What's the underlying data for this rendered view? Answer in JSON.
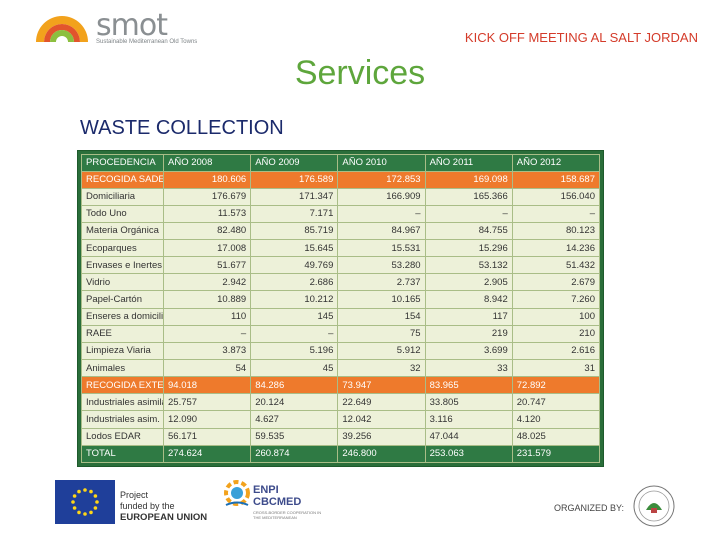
{
  "header": {
    "logo_word": "smot",
    "logo_tagline": "Sustainable Mediterranean Old Towns",
    "kickoff": "KICK OFF MEETING AL SALT JORDAN"
  },
  "title": "Services",
  "subtitle": "WASTE COLLECTION",
  "table": {
    "headers": [
      "PROCEDENCIA",
      "AÑO 2008",
      "AÑO 2009",
      "AÑO 2010",
      "AÑO 2011",
      "AÑO 2012"
    ],
    "rows": [
      {
        "style": "orange",
        "cells": [
          "RECOGIDA SADECO",
          "180.606",
          "176.589",
          "172.853",
          "169.098",
          "158.687"
        ]
      },
      {
        "style": "light",
        "cells": [
          "Domiciliaria",
          "176.679",
          "171.347",
          "166.909",
          "165.366",
          "156.040"
        ]
      },
      {
        "style": "light",
        "cells": [
          "Todo Uno",
          "11.573",
          "7.171",
          "–",
          "–",
          "–"
        ]
      },
      {
        "style": "light",
        "cells": [
          "Materia Orgánica",
          "82.480",
          "85.719",
          "84.967",
          "84.755",
          "80.123"
        ]
      },
      {
        "style": "light",
        "cells": [
          "Ecoparques",
          "17.008",
          "15.645",
          "15.531",
          "15.296",
          "14.236"
        ]
      },
      {
        "style": "light",
        "cells": [
          "Envases e Inertes",
          "51.677",
          "49.769",
          "53.280",
          "53.132",
          "51.432"
        ]
      },
      {
        "style": "light",
        "cells": [
          "Vidrio",
          "2.942",
          "2.686",
          "2.737",
          "2.905",
          "2.679"
        ]
      },
      {
        "style": "light",
        "cells": [
          "Papel-Cartón",
          "10.889",
          "10.212",
          "10.165",
          "8.942",
          "7.260"
        ]
      },
      {
        "style": "light",
        "cells": [
          "Enseres a domicilio",
          "110",
          "145",
          "154",
          "117",
          "100"
        ]
      },
      {
        "style": "light",
        "cells": [
          "RAEE",
          "–",
          "–",
          "75",
          "219",
          "210"
        ]
      },
      {
        "style": "light",
        "cells": [
          "Limpieza Viaria",
          "3.873",
          "5.196",
          "5.912",
          "3.699",
          "2.616"
        ]
      },
      {
        "style": "light",
        "cells": [
          "Animales",
          "54",
          "45",
          "32",
          "33",
          "31"
        ]
      },
      {
        "style": "orange lower",
        "cells": [
          "RECOGIDA EXTERNA",
          "94.018",
          "84.286",
          "73.947",
          "83.965",
          "72.892"
        ]
      },
      {
        "style": "light lower",
        "cells": [
          "Industriales asimilables",
          "25.757",
          "20.124",
          "22.649",
          "33.805",
          "20.747"
        ]
      },
      {
        "style": "light lower",
        "cells": [
          "Industriales asim. RCD",
          "12.090",
          "4.627",
          "12.042",
          "3.116",
          "4.120"
        ]
      },
      {
        "style": "light lower",
        "cells": [
          "Lodos EDAR",
          "56.171",
          "59.535",
          "39.256",
          "47.044",
          "48.025"
        ]
      },
      {
        "style": "total",
        "cells": [
          "TOTAL",
          "274.624",
          "260.874",
          "246.800",
          "253.063",
          "231.579"
        ]
      }
    ]
  },
  "footer": {
    "eu_line1": "Project",
    "eu_line2": "funded by the",
    "eu_line3": "EUROPEAN UNION",
    "enpi_line1": "ENPI",
    "enpi_line2": "CBCMED",
    "enpi_sub": "CROSS-BORDER COOPERATION IN THE MEDITERRANEAN",
    "organized": "ORGANIZED BY:"
  },
  "colors": {
    "title_green": "#5ea63c",
    "subtitle_blue": "#1b2a6b",
    "kickoff_red": "#d43b2a",
    "table_header_green": "#2f7a44",
    "orange_row": "#ee7a2c",
    "light_row": "#edf1d9"
  }
}
